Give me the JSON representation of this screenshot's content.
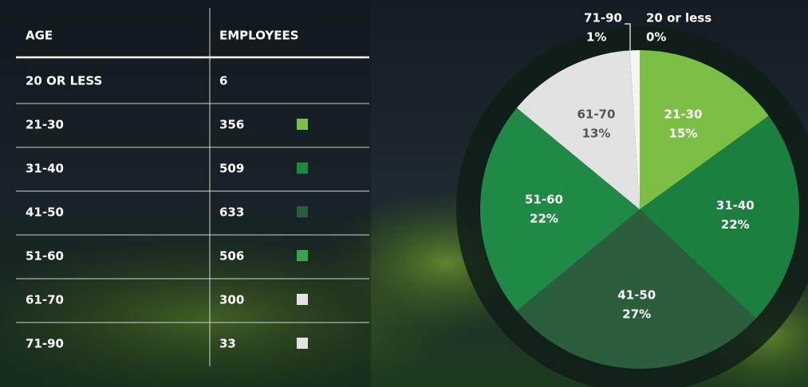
{
  "table": {
    "headers": [
      "AGE",
      "EMPLOYEES"
    ],
    "rows": [
      {
        "age": "20 OR LESS",
        "employees": 6
      },
      {
        "age": "21-30",
        "employees": 356,
        "swatch": "#7bbf44"
      },
      {
        "age": "31-40",
        "employees": 509,
        "swatch": "#1a8a3e"
      },
      {
        "age": "41-50",
        "employees": 633,
        "swatch": "#2b5e3c"
      },
      {
        "age": "51-60",
        "employees": 506,
        "swatch": "#3aa24a"
      },
      {
        "age": "61-70",
        "employees": 300,
        "swatch": "#e2e2e2"
      },
      {
        "age": "71-90",
        "employees": 33,
        "swatch": "#e2e2e2"
      }
    ]
  },
  "chart_data": {
    "type": "pie",
    "categories": [
      "21-30",
      "31-40",
      "41-50",
      "51-60",
      "61-70",
      "71-90",
      "20 or less"
    ],
    "values": [
      15,
      22,
      27,
      22,
      13,
      1,
      0
    ],
    "value_labels": [
      "15%",
      "22%",
      "27%",
      "22%",
      "13%",
      "1%",
      "0%"
    ],
    "colors": [
      "#7bbf44",
      "#1a7f3f",
      "#2b5e3c",
      "#1f8a45",
      "#e2e2e2",
      "#f4f4f4",
      "#ffffff"
    ]
  }
}
